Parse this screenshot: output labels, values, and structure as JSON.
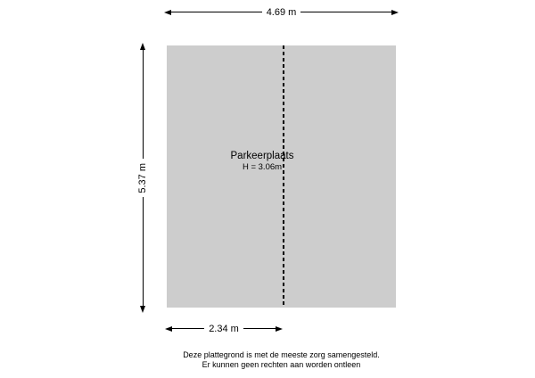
{
  "colors": {
    "room-fill": "#cdcdcd",
    "line-color": "#000000",
    "text-color": "#000000"
  },
  "floor_plan": {
    "dimensions": {
      "top": "4.69 m",
      "left": "5.37 m",
      "bottom": "2.34 m"
    },
    "room": {
      "label": "Parkeerplaats",
      "height_label": "H = 3.06m"
    },
    "icons": {
      "arrowhead_left": "filled triangle pointing left",
      "arrowhead_right": "filled triangle pointing right",
      "arrowhead_up": "filled triangle pointing up",
      "arrowhead_down": "filled triangle pointing down"
    }
  },
  "footer": {
    "line1": "Deze plattegrond is met de meeste zorg samengesteld.",
    "line2": "Er kunnen geen rechten aan worden ontleen"
  }
}
